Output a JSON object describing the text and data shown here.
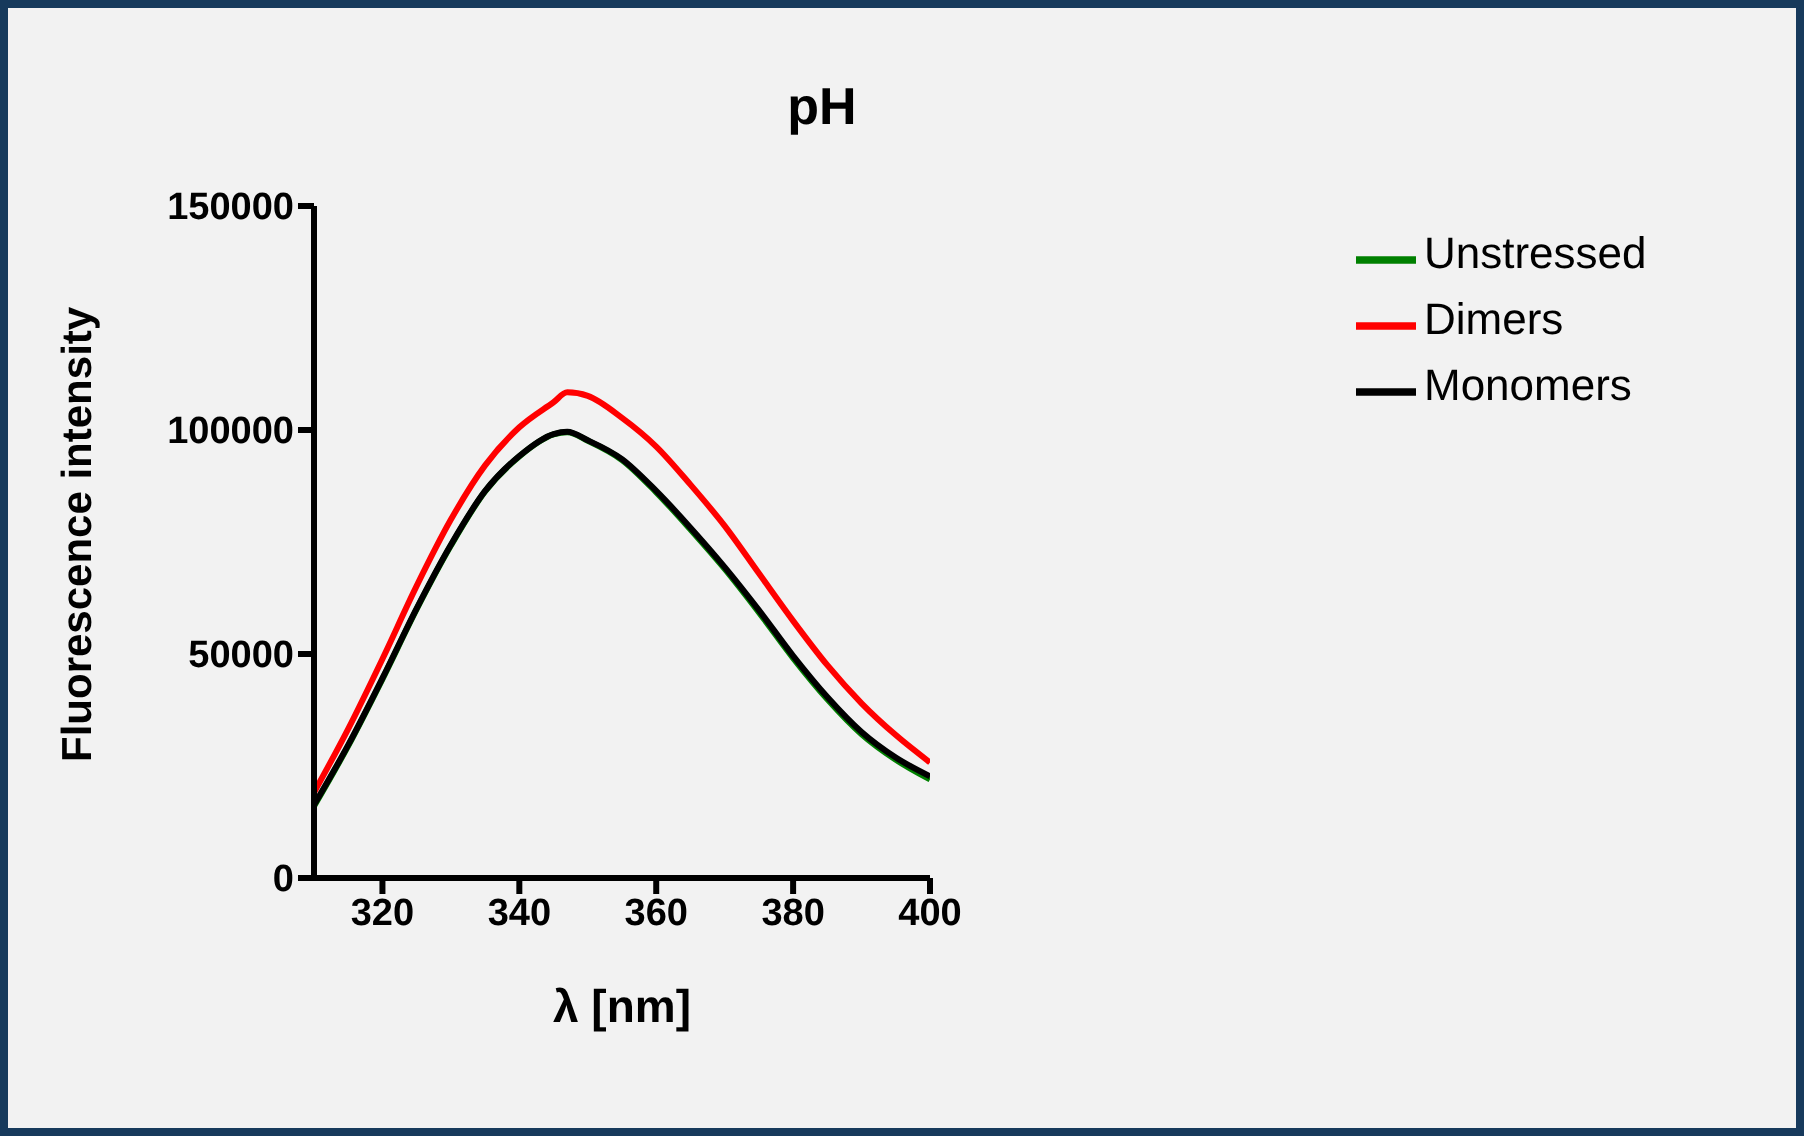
{
  "chart_data": {
    "type": "line",
    "title": "pH",
    "xlabel": "λ [nm]",
    "ylabel": "Fluorescence intensity",
    "x": [
      310,
      315,
      320,
      325,
      330,
      335,
      340,
      345,
      347,
      350,
      355,
      360,
      365,
      370,
      375,
      380,
      385,
      390,
      395,
      400
    ],
    "xlim": [
      310,
      400
    ],
    "xticks": [
      320,
      340,
      360,
      380,
      400
    ],
    "ylim": [
      0,
      150000
    ],
    "yticks": [
      0,
      50000,
      100000,
      150000
    ],
    "legend": "top right",
    "series": [
      {
        "name": "Unstressed",
        "color": "#008000",
        "values": [
          16000,
          29500,
          44400,
          60000,
          74200,
          86300,
          94100,
          99000,
          99500,
          97600,
          93300,
          86100,
          77800,
          69000,
          59300,
          49100,
          39900,
          32100,
          26400,
          22000
        ]
      },
      {
        "name": "Dimers",
        "color": "#ff0000",
        "values": [
          19100,
          33300,
          48900,
          65200,
          80000,
          92100,
          100600,
          106200,
          108400,
          107600,
          102700,
          96300,
          87800,
          78600,
          68000,
          57400,
          47500,
          39000,
          31900,
          25800
        ]
      },
      {
        "name": "Monomers",
        "color": "#000000",
        "values": [
          16300,
          29700,
          44600,
          60200,
          74400,
          86400,
          94200,
          99100,
          99600,
          97700,
          93500,
          86400,
          78200,
          69400,
          59800,
          49600,
          40400,
          32600,
          26900,
          22700
        ]
      }
    ]
  }
}
